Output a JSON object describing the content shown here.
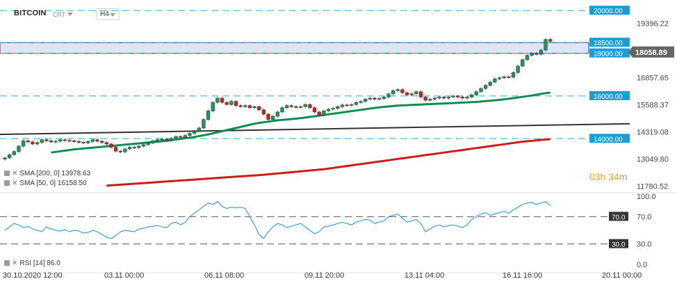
{
  "header": {
    "symbol": "BITCOIN",
    "instrument_type": "CRT",
    "timeframe": "H4"
  },
  "legend": {
    "sma200": "SMA [200, 0] 13978.63",
    "sma50": "SMA [50, 0] 16158.50",
    "rsi": "RSI [14] 86.0"
  },
  "countdown": {
    "hours": "03",
    "hours_unit": "h",
    "minutes": "34",
    "minutes_unit": "m"
  },
  "colors": {
    "bullish": "#1e9a58",
    "bearish": "#d42020",
    "sma50": "#0f8c50",
    "sma200": "#d01a1a",
    "trendline": "#333333",
    "level_line": "#2aa8d8",
    "level_tag_bg": "#1a9ed8",
    "current_price_tag_bg": "#666666",
    "rsi_line": "#3a9ee0",
    "zone_fill": "#dde6f6"
  },
  "chart_data": [
    {
      "type": "candlestick",
      "instrument": "BITCOIN",
      "timeframe": "H4",
      "y_ticks": [
        "19396.22",
        "16857.65",
        "15588.37",
        "14319.08",
        "13049.80",
        "11780.52"
      ],
      "ylim": [
        11500,
        20300
      ],
      "x_ticks": [
        "30.10.2020 12:00",
        "03.11 00:00",
        "06.11 08:00",
        "09.11 20:00",
        "13.11 04:00",
        "16.11 16:00",
        "20.11 00:00"
      ],
      "current_price": "18058.89",
      "levels": [
        {
          "label": "20000.00",
          "value": 20000
        },
        {
          "label": "18500.00",
          "value": 18500
        },
        {
          "label": "18000.00",
          "value": 18000
        },
        {
          "label": "16000.00",
          "value": 16000
        },
        {
          "label": "14000.00",
          "value": 14000
        }
      ],
      "resistance_zone": [
        18000,
        18500
      ],
      "closes": [
        13100,
        13250,
        13400,
        13650,
        13900,
        13850,
        13750,
        13820,
        13950,
        13900,
        13850,
        13880,
        13950,
        13920,
        13900,
        13870,
        13830,
        13800,
        13870,
        13950,
        13880,
        13820,
        13750,
        13600,
        13420,
        13380,
        13520,
        13600,
        13580,
        13650,
        13720,
        13800,
        13900,
        13950,
        13980,
        13920,
        14020,
        14100,
        14060,
        14150,
        14250,
        14350,
        14500,
        14900,
        15300,
        15700,
        15900,
        15700,
        15600,
        15750,
        15550,
        15500,
        15550,
        15450,
        15500,
        15350,
        15150,
        14900,
        15050,
        15250,
        15450,
        15550,
        15500,
        15480,
        15500,
        15600,
        15450,
        15250,
        15100,
        15300,
        15380,
        15420,
        15500,
        15580,
        15560,
        15600,
        15700,
        15750,
        15850,
        15900,
        15850,
        15880,
        15950,
        16100,
        16250,
        16300,
        16150,
        16050,
        16100,
        16200,
        15950,
        15800,
        15850,
        15900,
        15950,
        15900,
        15950,
        16000,
        15950,
        15900,
        15950,
        16050,
        16200,
        16350,
        16500,
        16650,
        16800,
        16850,
        16900,
        16880,
        17100,
        17400,
        17700,
        17900,
        18000,
        17950,
        18150,
        18650,
        18559
      ],
      "sma50": [
        null,
        null,
        null,
        null,
        null,
        null,
        null,
        null,
        null,
        null,
        13350,
        13380,
        13410,
        13440,
        13470,
        13500,
        13520,
        13540,
        13560,
        13580,
        13600,
        13620,
        13640,
        13660,
        13680,
        13700,
        13720,
        13740,
        13760,
        13780,
        13800,
        13820,
        13840,
        13860,
        13880,
        13900,
        13930,
        13960,
        13990,
        14020,
        14050,
        14080,
        14120,
        14160,
        14200,
        14250,
        14300,
        14350,
        14400,
        14450,
        14500,
        14550,
        14600,
        14650,
        14700,
        14740,
        14770,
        14800,
        14830,
        14860,
        14880,
        14900,
        14920,
        14940,
        14960,
        14990,
        15020,
        15050,
        15080,
        15110,
        15140,
        15170,
        15200,
        15230,
        15260,
        15290,
        15320,
        15350,
        15380,
        15410,
        15440,
        15470,
        15490,
        15510,
        15530,
        15550,
        15560,
        15570,
        15580,
        15590,
        15600,
        15610,
        15620,
        15630,
        15640,
        15650,
        15660,
        15670,
        15680,
        15690,
        15700,
        15710,
        15720,
        15740,
        15760,
        15780,
        15800,
        15820,
        15840,
        15870,
        15900,
        15930,
        15960,
        15990,
        16020,
        16060,
        16100,
        16130,
        16158.5
      ],
      "sma200": [
        null,
        null,
        null,
        null,
        null,
        null,
        null,
        null,
        null,
        null,
        null,
        null,
        null,
        null,
        null,
        null,
        null,
        null,
        null,
        null,
        null,
        null,
        11800,
        11815,
        11830,
        11845,
        11860,
        11875,
        11890,
        11905,
        11920,
        11935,
        11950,
        11965,
        11980,
        11995,
        12010,
        12025,
        12040,
        12055,
        12070,
        12085,
        12100,
        12115,
        12130,
        12145,
        12160,
        12175,
        12190,
        12205,
        12220,
        12235,
        12250,
        12265,
        12280,
        12295,
        12310,
        12330,
        12350,
        12370,
        12390,
        12410,
        12430,
        12450,
        12470,
        12490,
        12510,
        12530,
        12550,
        12570,
        12600,
        12630,
        12660,
        12690,
        12720,
        12750,
        12780,
        12810,
        12840,
        12870,
        12900,
        12930,
        12960,
        12990,
        13020,
        13050,
        13080,
        13110,
        13140,
        13170,
        13200,
        13230,
        13260,
        13290,
        13320,
        13350,
        13380,
        13410,
        13440,
        13470,
        13500,
        13530,
        13560,
        13590,
        13620,
        13650,
        13680,
        13710,
        13740,
        13770,
        13800,
        13830,
        13860,
        13880,
        13900,
        13920,
        13940,
        13960,
        13978.63
      ],
      "trendline": {
        "start": 14200,
        "end": 14700
      }
    },
    {
      "type": "line",
      "name": "RSI [14]",
      "ylim": [
        0,
        100
      ],
      "y_ticks": [
        "100.0",
        "70.0",
        "30.0",
        "0.0"
      ],
      "levels": [
        {
          "label": "70.0",
          "value": 70
        },
        {
          "label": "30.0",
          "value": 30
        }
      ],
      "values": [
        50,
        55,
        60,
        58,
        54,
        56,
        52,
        50,
        48,
        55,
        52,
        50,
        49,
        51,
        48,
        50,
        49,
        46,
        47,
        50,
        48,
        44,
        40,
        38,
        42,
        48,
        50,
        49,
        48,
        52,
        53,
        55,
        56,
        57,
        55,
        54,
        60,
        62,
        58,
        62,
        70,
        75,
        80,
        85,
        90,
        88,
        92,
        85,
        82,
        84,
        83,
        84,
        82,
        70,
        58,
        44,
        38,
        48,
        55,
        60,
        58,
        54,
        56,
        58,
        60,
        55,
        50,
        45,
        48,
        55,
        56,
        58,
        60,
        62,
        60,
        58,
        62,
        64,
        66,
        65,
        60,
        62,
        64,
        70,
        72,
        74,
        68,
        62,
        64,
        66,
        60,
        48,
        52,
        56,
        58,
        55,
        57,
        58,
        56,
        54,
        58,
        66,
        70,
        74,
        76,
        72,
        74,
        76,
        78,
        75,
        80,
        84,
        88,
        90,
        91,
        88,
        90,
        92,
        86
      ]
    }
  ]
}
